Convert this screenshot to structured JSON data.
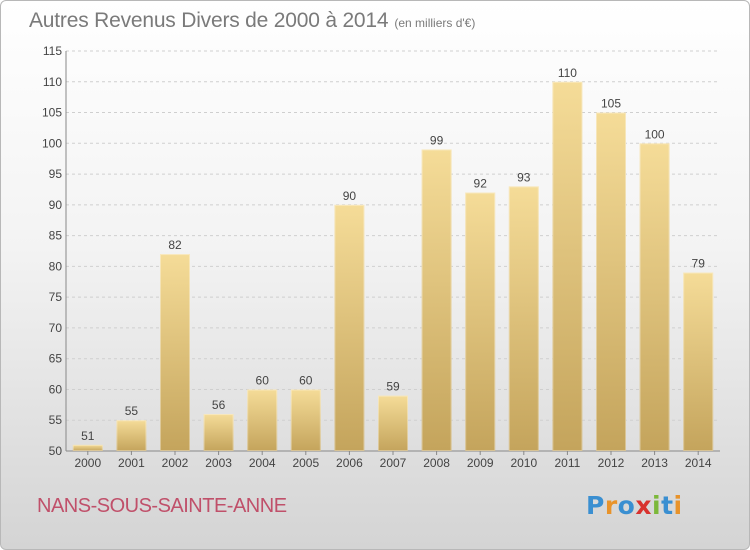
{
  "header": {
    "title": "Autres Revenus Divers de 2000 à 2014",
    "unit": "(en milliers d'€)"
  },
  "footer": {
    "commune": "NANS-SOUS-SAINTE-ANNE",
    "logo_letters": [
      "P",
      "r",
      "o",
      "x",
      "i",
      "t",
      "i"
    ],
    "logo_colors": [
      "#3a8fd1",
      "#e8932a",
      "#3a8fd1",
      "#d8322e",
      "#7cb83a",
      "#3a8fd1",
      "#e8932a"
    ]
  },
  "colors": {
    "bar_top": "#f5dc98",
    "bar_bottom": "#c4a45c",
    "grid": "#cfcfcf",
    "axis_text": "#444444",
    "title": "#7a7a7a",
    "commune": "#c0506a"
  },
  "chart_data": {
    "type": "bar",
    "title": "Autres Revenus Divers de 2000 à 2014",
    "xlabel": "",
    "ylabel": "",
    "ylim": [
      50,
      115
    ],
    "yticks": [
      50,
      55,
      60,
      65,
      70,
      75,
      80,
      85,
      90,
      95,
      100,
      105,
      110,
      115
    ],
    "grid": true,
    "categories": [
      "2000",
      "2001",
      "2002",
      "2003",
      "2004",
      "2005",
      "2006",
      "2007",
      "2008",
      "2009",
      "2010",
      "2011",
      "2012",
      "2013",
      "2014"
    ],
    "values": [
      51,
      55,
      82,
      56,
      60,
      60,
      90,
      59,
      99,
      92,
      93,
      110,
      105,
      100,
      79
    ]
  }
}
